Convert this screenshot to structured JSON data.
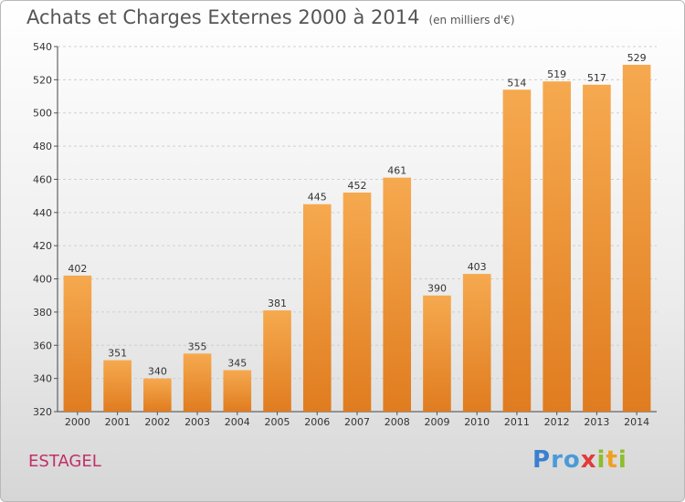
{
  "title": "Achats et Charges Externes 2000 à 2014",
  "subtitle": "(en milliers d'€)",
  "city": "ESTAGEL",
  "logo": "Proxiti",
  "colors": {
    "bar_top": "#f6a94f",
    "bar_bottom": "#e07c1f",
    "city": "#c0306a"
  },
  "chart_data": {
    "type": "bar",
    "title": "Achats et Charges Externes 2000 à 2014",
    "subtitle": "(en milliers d'€)",
    "categories": [
      "2000",
      "2001",
      "2002",
      "2003",
      "2004",
      "2005",
      "2006",
      "2007",
      "2008",
      "2009",
      "2010",
      "2011",
      "2012",
      "2013",
      "2014"
    ],
    "values": [
      402,
      351,
      340,
      355,
      345,
      381,
      445,
      452,
      461,
      390,
      403,
      514,
      519,
      517,
      529
    ],
    "ylim": [
      320,
      540
    ],
    "yticks": [
      320,
      340,
      360,
      380,
      400,
      420,
      440,
      460,
      480,
      500,
      520,
      540
    ],
    "grid": true,
    "legend": "none"
  }
}
